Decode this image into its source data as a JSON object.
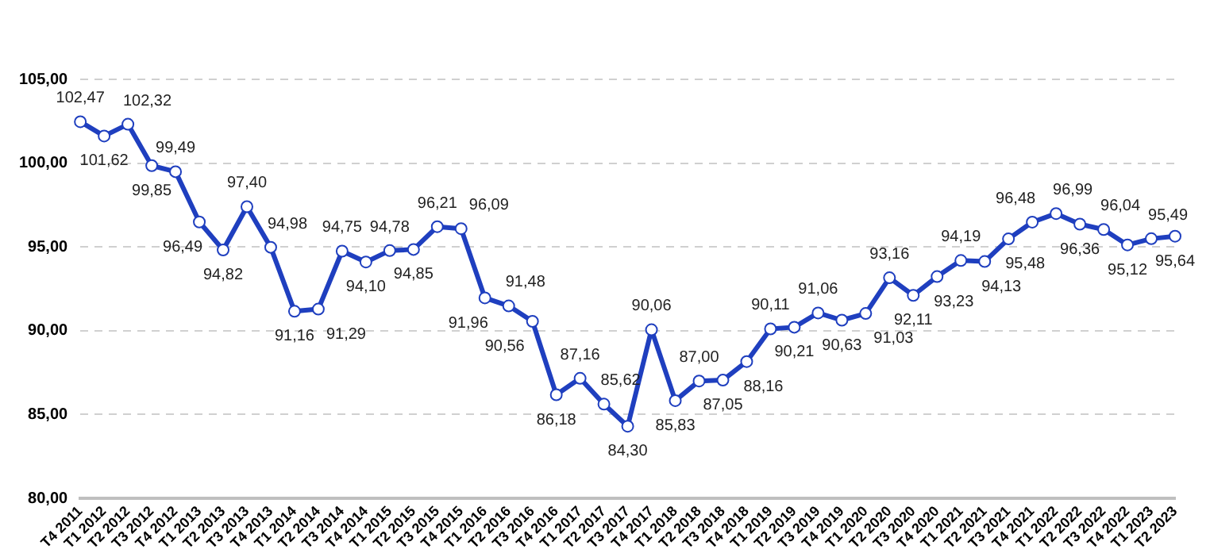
{
  "chart_data": {
    "type": "line",
    "categories": [
      "T4 2011",
      "T1 2012",
      "T2 2012",
      "T3 2012",
      "T4 2012",
      "T1 2013",
      "T2 2013",
      "T3 2013",
      "T4 2013",
      "T1 2014",
      "T2 2014",
      "T3 2014",
      "T4 2014",
      "T1 2015",
      "T2 2015",
      "T3 2015",
      "T4 2015",
      "T1 2016",
      "T2 2016",
      "T3 2016",
      "T4 2016",
      "T1 2017",
      "T2 2017",
      "T3 2017",
      "T4 2017",
      "T1 2018",
      "T2 2018",
      "T3 2018",
      "T4 2018",
      "T1 2019",
      "T2 2019",
      "T3 2019",
      "T4 2019",
      "T1 2020",
      "T2 2020",
      "T3 2020",
      "T4 2020",
      "T1 2021",
      "T2 2021",
      "T3 2021",
      "T4 2021",
      "T1 2022",
      "T2 2022",
      "T3 2022",
      "T4 2022",
      "T1 2023",
      "T2 2023"
    ],
    "series": [
      {
        "color": "#1f3fbf",
        "values": [
          102.47,
          101.62,
          102.32,
          99.85,
          99.49,
          96.49,
          94.82,
          97.4,
          94.98,
          91.16,
          91.29,
          94.75,
          94.1,
          94.78,
          94.85,
          96.21,
          96.09,
          91.96,
          91.48,
          90.56,
          86.18,
          87.16,
          85.62,
          84.3,
          90.06,
          85.83,
          87.0,
          87.05,
          88.16,
          90.11,
          90.21,
          91.06,
          90.63,
          91.03,
          93.16,
          92.11,
          93.23,
          94.19,
          94.13,
          95.48,
          96.48,
          96.99,
          96.36,
          96.04,
          95.12,
          95.49,
          95.64
        ],
        "value_labels": [
          "102,47",
          "101,62",
          "102,32",
          "99,85",
          "99,49",
          "96,49",
          "94,82",
          "97,40",
          "94,98",
          "91,16",
          "91,29",
          "94,75",
          "94,10",
          "94,78",
          "94,85",
          "96,21",
          "96,09",
          "91,96",
          "91,48",
          "90,56",
          "86,18",
          "87,16",
          "85,62",
          "84,30",
          "90,06",
          "85,83",
          "87,00",
          "87,05",
          "88,16",
          "90,11",
          "90,21",
          "91,06",
          "90,63",
          "91,03",
          "93,16",
          "92,11",
          "93,23",
          "94,19",
          "94,13",
          "95,48",
          "96,48",
          "96,99",
          "96,36",
          "96,04",
          "95,12",
          "95,49",
          "95,64"
        ]
      }
    ],
    "ylim": [
      80,
      105
    ],
    "yticks": [
      {
        "value": 80,
        "label": "80,00"
      },
      {
        "value": 85,
        "label": "85,00"
      },
      {
        "value": 90,
        "label": "90,00"
      },
      {
        "value": 95,
        "label": "95,00"
      },
      {
        "value": 100,
        "label": "100,00"
      },
      {
        "value": 105,
        "label": "105,00"
      }
    ],
    "grid": "y",
    "legend": false,
    "marker": "circle",
    "line_style": "solid"
  }
}
